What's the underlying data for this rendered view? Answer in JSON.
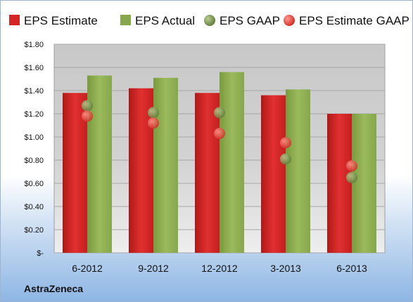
{
  "company": "AstraZeneca",
  "chart_data": {
    "type": "bar",
    "categories": [
      "6-2012",
      "9-2012",
      "12-2012",
      "3-2013",
      "6-2013"
    ],
    "series": [
      {
        "name": "EPS Estimate",
        "kind": "bar",
        "color": "#d42424",
        "values": [
          1.38,
          1.42,
          1.38,
          1.36,
          1.2
        ]
      },
      {
        "name": "EPS Actual",
        "kind": "bar",
        "color": "#86a84a",
        "values": [
          1.53,
          1.51,
          1.56,
          1.41,
          1.2
        ]
      },
      {
        "name": "EPS GAAP",
        "kind": "scatter",
        "color": "#6f8a45",
        "values": [
          1.27,
          1.21,
          1.21,
          0.81,
          0.65
        ]
      },
      {
        "name": "EPS Estimate GAAP",
        "kind": "scatter",
        "color": "#e0403c",
        "values": [
          1.18,
          1.12,
          1.03,
          0.95,
          0.75
        ]
      }
    ],
    "ylim": [
      0,
      1.8
    ],
    "yticks": [
      0,
      0.2,
      0.4,
      0.6,
      0.8,
      1.0,
      1.2,
      1.4,
      1.6,
      1.8
    ],
    "ytick_labels": [
      "$-",
      "$0.20",
      "$0.40",
      "$0.60",
      "$0.80",
      "$1.00",
      "$1.20",
      "$1.40",
      "$1.60",
      "$1.80"
    ],
    "grid": true,
    "legend_position": "top"
  }
}
